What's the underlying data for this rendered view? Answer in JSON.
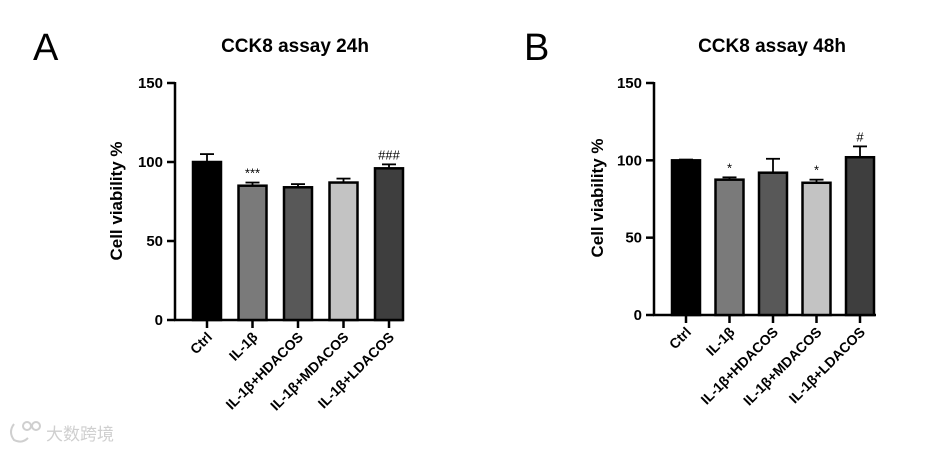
{
  "watermark": "大数跨境",
  "chart_data": [
    {
      "type": "bar",
      "panel": "A",
      "title": "CCK8 assay 24h",
      "ylabel": "Cell viability %",
      "xlabel": "",
      "ylim": [
        0,
        150
      ],
      "yticks": [
        0,
        50,
        100,
        150
      ],
      "categories": [
        "Ctrl",
        "IL-1β",
        "IL-1β+HDACOS",
        "IL-1β+MDACOS",
        "IL-1β+LDACOS"
      ],
      "values": [
        100,
        85,
        84,
        87,
        96
      ],
      "errors": [
        5,
        2,
        2,
        2.5,
        2.5
      ],
      "significance": [
        "",
        "***",
        "",
        "",
        "###"
      ],
      "colors": [
        "#000000",
        "#7a7a7a",
        "#585858",
        "#c3c3c3",
        "#3e3e3e"
      ]
    },
    {
      "type": "bar",
      "panel": "B",
      "title": "CCK8 assay 48h",
      "ylabel": "Cell viability %",
      "xlabel": "",
      "ylim": [
        0,
        150
      ],
      "yticks": [
        0,
        50,
        100,
        150
      ],
      "categories": [
        "Ctrl",
        "IL-1β",
        "IL-1β+HDACOS",
        "IL-1β+MDACOS",
        "IL-1β+LDACOS"
      ],
      "values": [
        100,
        87.5,
        92,
        85.5,
        102
      ],
      "errors": [
        0.5,
        1.5,
        9,
        2,
        7
      ],
      "significance": [
        "",
        "*",
        "",
        "*",
        "#"
      ],
      "colors": [
        "#000000",
        "#7a7a7a",
        "#585858",
        "#c3c3c3",
        "#3e3e3e"
      ]
    }
  ]
}
